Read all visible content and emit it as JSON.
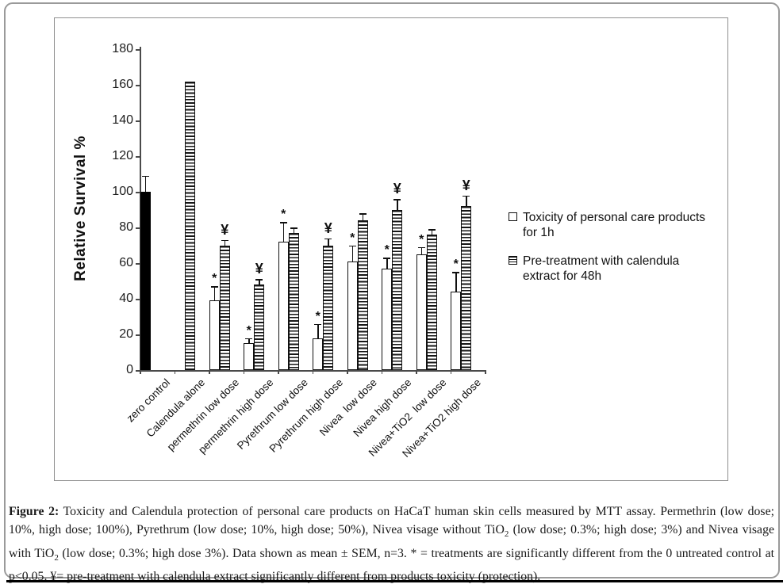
{
  "figure": {
    "caption_label": "Figure 2:",
    "caption_segments": [
      {
        "t": " Toxicity and Calendula protection of personal care products on HaCaT human skin cells measured by MTT assay. Permethrin (low dose; 10%, high dose; 100%), Pyrethrum (low dose; 10%, high dose; 50%), Nivea visage without TiO"
      },
      {
        "t": "2",
        "sub": true
      },
      {
        "t": " (low dose; 0.3%; high dose; 3%) and Nivea visage with TiO"
      },
      {
        "t": "2",
        "sub": true
      },
      {
        "t": " (low dose; 0.3%; high dose 3%). Data shown as mean ± SEM, n=3. * = treatments are significantly different from the 0 untreated control at p<0.05. ¥= pre-treatment with calendula extract significantly different from products toxicity (protection)."
      }
    ]
  },
  "chart_data": {
    "type": "bar",
    "title": "",
    "xlabel": "",
    "ylabel": "Relative Survival %",
    "ylim": [
      0,
      180
    ],
    "yticks": [
      0,
      20,
      40,
      60,
      80,
      100,
      120,
      140,
      160,
      180
    ],
    "grid": false,
    "legend_position": "right",
    "xtick_rotation": 45,
    "categories": [
      "zero control",
      "Calendula alone",
      "permethrin low dose",
      "permethrin high dose",
      "Pyrethrum low dose",
      "Pyrethrum high dose",
      "Nivea  low dose",
      "Nivea high dose",
      "Nivea+TiO2  low dose",
      "Nivea+TiO2 high dose"
    ],
    "series": [
      {
        "name": "Toxicity of personal care products for 1h",
        "style": "white",
        "bar_style_overrides": {
          "0": "black"
        },
        "values": [
          100,
          null,
          39,
          15,
          72,
          18,
          61,
          57,
          65,
          44
        ],
        "sem": [
          9,
          null,
          8,
          3,
          11,
          8,
          9,
          6,
          4,
          11
        ],
        "annotations": [
          null,
          null,
          "*",
          "*",
          "*",
          "*",
          "*",
          "*",
          "*",
          "*"
        ]
      },
      {
        "name": "Pre-treatment with calendula extract for 48h",
        "style": "striped",
        "bar_style_overrides": {},
        "values": [
          null,
          162,
          70,
          48,
          77,
          70,
          84,
          90,
          76,
          92
        ],
        "sem": [
          null,
          null,
          3,
          3,
          3,
          4,
          4,
          6,
          3,
          6
        ],
        "annotations": [
          null,
          null,
          "¥",
          "¥",
          null,
          "¥",
          null,
          "¥",
          null,
          "¥"
        ]
      }
    ],
    "annotation_meanings": {
      "*": "treatment significantly different from the 0 untreated control at p<0.05",
      "¥": "pre-treatment with calendula extract significantly different from products toxicity (protection)"
    }
  }
}
